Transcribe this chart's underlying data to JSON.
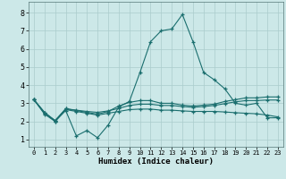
{
  "xlabel": "Humidex (Indice chaleur)",
  "bg_color": "#cce8e8",
  "grid_color": "#aacccc",
  "line_color": "#1a6e6e",
  "xlim": [
    -0.5,
    23.5
  ],
  "ylim": [
    0.6,
    8.6
  ],
  "xticks": [
    0,
    1,
    2,
    3,
    4,
    5,
    6,
    7,
    8,
    9,
    10,
    11,
    12,
    13,
    14,
    15,
    16,
    17,
    18,
    19,
    20,
    21,
    22,
    23
  ],
  "yticks": [
    1,
    2,
    3,
    4,
    5,
    6,
    7,
    8
  ],
  "series": [
    [
      3.2,
      2.4,
      2.0,
      2.6,
      1.2,
      1.5,
      1.1,
      1.8,
      2.8,
      3.1,
      4.7,
      6.4,
      7.0,
      7.1,
      7.9,
      6.4,
      4.7,
      4.3,
      3.8,
      3.0,
      2.9,
      3.0,
      2.2,
      2.2
    ],
    [
      3.2,
      2.5,
      2.0,
      2.7,
      2.6,
      2.5,
      2.4,
      2.55,
      2.85,
      3.05,
      3.15,
      3.15,
      3.0,
      3.0,
      2.9,
      2.85,
      2.9,
      2.95,
      3.1,
      3.2,
      3.3,
      3.3,
      3.35,
      3.35
    ],
    [
      3.2,
      2.45,
      2.05,
      2.65,
      2.55,
      2.45,
      2.35,
      2.45,
      2.55,
      2.65,
      2.68,
      2.68,
      2.62,
      2.62,
      2.58,
      2.55,
      2.55,
      2.55,
      2.52,
      2.48,
      2.45,
      2.42,
      2.35,
      2.25
    ],
    [
      3.2,
      2.5,
      2.05,
      2.7,
      2.62,
      2.55,
      2.5,
      2.58,
      2.72,
      2.88,
      2.95,
      2.95,
      2.88,
      2.88,
      2.82,
      2.78,
      2.82,
      2.88,
      2.98,
      3.08,
      3.15,
      3.15,
      3.18,
      3.18
    ]
  ]
}
